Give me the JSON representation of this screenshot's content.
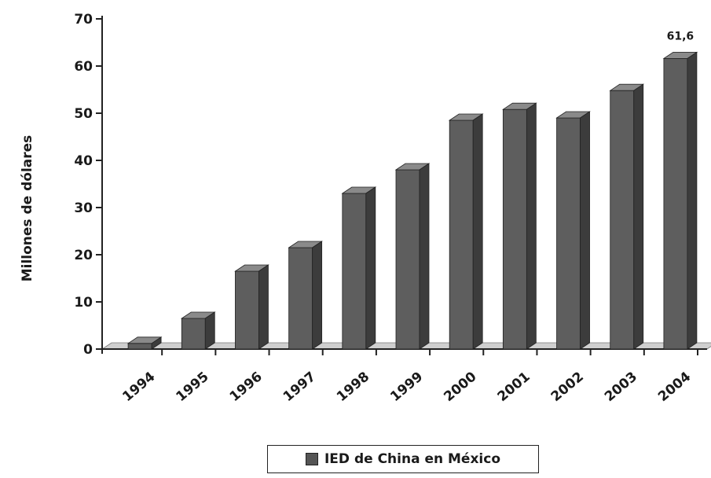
{
  "chart_data": {
    "type": "bar",
    "categories": [
      "1994",
      "1995",
      "1996",
      "1997",
      "1998",
      "1999",
      "2000",
      "2001",
      "2002",
      "2003",
      "2004"
    ],
    "series": [
      {
        "name": "IED de China en México",
        "values": [
          1.2,
          6.5,
          16.5,
          21.5,
          33.0,
          38.0,
          48.5,
          50.8,
          49.0,
          54.8,
          61.6
        ]
      }
    ],
    "ylabel": "Millones de dólares",
    "ylim": [
      0,
      70
    ],
    "yticks": [
      0,
      10,
      20,
      30,
      40,
      50,
      60,
      70
    ],
    "data_labels": [
      {
        "index": 10,
        "text": "61,6"
      }
    ],
    "legend_position": "bottom",
    "grid": false,
    "style": "3d-bar",
    "bar_color": "#5a5a5a"
  }
}
